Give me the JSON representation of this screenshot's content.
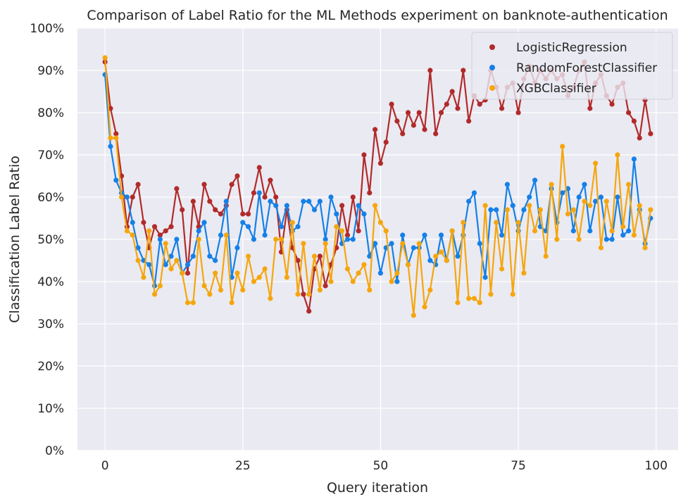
{
  "chart_data": {
    "type": "line",
    "title": "Comparison of Label Ratio for the ML Methods experiment on banknote-authentication",
    "xlabel": "Query iteration",
    "ylabel": "Classification Label Ratio",
    "xlim": [
      -5,
      104
    ],
    "ylim": [
      0,
      1
    ],
    "xticks": [
      0,
      25,
      50,
      75,
      100
    ],
    "xtick_labels": [
      "0",
      "25",
      "50",
      "75",
      "100"
    ],
    "yticks": [
      0,
      0.1,
      0.2,
      0.3,
      0.4,
      0.5,
      0.6,
      0.7,
      0.8,
      0.9,
      1.0
    ],
    "ytick_labels": [
      "0%",
      "10%",
      "20%",
      "30%",
      "40%",
      "50%",
      "60%",
      "70%",
      "80%",
      "90%",
      "100%"
    ],
    "grid": true,
    "legend_position": "top-right",
    "background": "#eaeaf2",
    "series": [
      {
        "name": "LogisticRegression",
        "color": "#b22a2a",
        "values": [
          0.92,
          0.81,
          0.75,
          0.65,
          0.53,
          0.6,
          0.63,
          0.54,
          0.48,
          0.53,
          0.51,
          0.52,
          0.53,
          0.62,
          0.57,
          0.42,
          0.59,
          0.53,
          0.63,
          0.59,
          0.57,
          0.56,
          0.58,
          0.63,
          0.65,
          0.56,
          0.56,
          0.61,
          0.67,
          0.6,
          0.64,
          0.6,
          0.47,
          0.57,
          0.48,
          0.45,
          0.37,
          0.33,
          0.43,
          0.46,
          0.39,
          0.44,
          0.48,
          0.58,
          0.51,
          0.6,
          0.52,
          0.7,
          0.61,
          0.76,
          0.68,
          0.73,
          0.82,
          0.78,
          0.75,
          0.8,
          0.77,
          0.8,
          0.76,
          0.9,
          0.75,
          0.8,
          0.82,
          0.85,
          0.81,
          0.9,
          0.78,
          0.84,
          0.82,
          0.83,
          0.9,
          0.86,
          0.81,
          0.86,
          0.87,
          0.8,
          0.88,
          0.91,
          0.87,
          0.9,
          0.88,
          0.9,
          0.88,
          0.89,
          0.84,
          0.86,
          0.9,
          0.92,
          0.81,
          0.87,
          0.89,
          0.84,
          0.82,
          0.86,
          0.87,
          0.8,
          0.78,
          0.74,
          0.83,
          0.75
        ]
      },
      {
        "name": "RandomForestClassifier",
        "color": "#1480e8",
        "values": [
          0.89,
          0.72,
          0.64,
          0.61,
          0.6,
          0.54,
          0.48,
          0.45,
          0.44,
          0.39,
          0.5,
          0.44,
          0.46,
          0.5,
          0.42,
          0.44,
          0.46,
          0.52,
          0.54,
          0.46,
          0.45,
          0.51,
          0.59,
          0.41,
          0.48,
          0.54,
          0.53,
          0.5,
          0.61,
          0.51,
          0.59,
          0.58,
          0.53,
          0.58,
          0.52,
          0.53,
          0.59,
          0.59,
          0.57,
          0.59,
          0.5,
          0.6,
          0.56,
          0.49,
          0.5,
          0.5,
          0.58,
          0.56,
          0.46,
          0.49,
          0.42,
          0.48,
          0.49,
          0.4,
          0.51,
          0.44,
          0.48,
          0.48,
          0.51,
          0.45,
          0.44,
          0.51,
          0.45,
          0.52,
          0.46,
          0.51,
          0.59,
          0.61,
          0.49,
          0.41,
          0.57,
          0.57,
          0.51,
          0.63,
          0.58,
          0.52,
          0.57,
          0.6,
          0.64,
          0.53,
          0.52,
          0.62,
          0.54,
          0.61,
          0.62,
          0.52,
          0.6,
          0.63,
          0.52,
          0.59,
          0.6,
          0.5,
          0.5,
          0.6,
          0.51,
          0.52,
          0.69,
          0.57,
          0.49,
          0.55
        ]
      },
      {
        "name": "XGBClassifier",
        "color": "#f5a60d",
        "values": [
          0.93,
          0.74,
          0.74,
          0.6,
          0.52,
          0.51,
          0.45,
          0.41,
          0.52,
          0.37,
          0.39,
          0.49,
          0.43,
          0.45,
          0.42,
          0.35,
          0.35,
          0.5,
          0.39,
          0.37,
          0.42,
          0.38,
          0.51,
          0.35,
          0.42,
          0.38,
          0.46,
          0.4,
          0.41,
          0.43,
          0.36,
          0.5,
          0.5,
          0.41,
          0.54,
          0.37,
          0.49,
          0.37,
          0.46,
          0.38,
          0.49,
          0.4,
          0.53,
          0.52,
          0.43,
          0.4,
          0.42,
          0.44,
          0.38,
          0.58,
          0.54,
          0.52,
          0.4,
          0.42,
          0.49,
          0.44,
          0.32,
          0.49,
          0.34,
          0.38,
          0.46,
          0.47,
          0.45,
          0.52,
          0.35,
          0.54,
          0.36,
          0.36,
          0.35,
          0.58,
          0.37,
          0.54,
          0.43,
          0.57,
          0.37,
          0.54,
          0.42,
          0.58,
          0.52,
          0.57,
          0.46,
          0.63,
          0.5,
          0.72,
          0.56,
          0.57,
          0.5,
          0.59,
          0.58,
          0.68,
          0.48,
          0.59,
          0.52,
          0.7,
          0.53,
          0.63,
          0.51,
          0.58,
          0.48,
          0.57
        ]
      }
    ]
  }
}
